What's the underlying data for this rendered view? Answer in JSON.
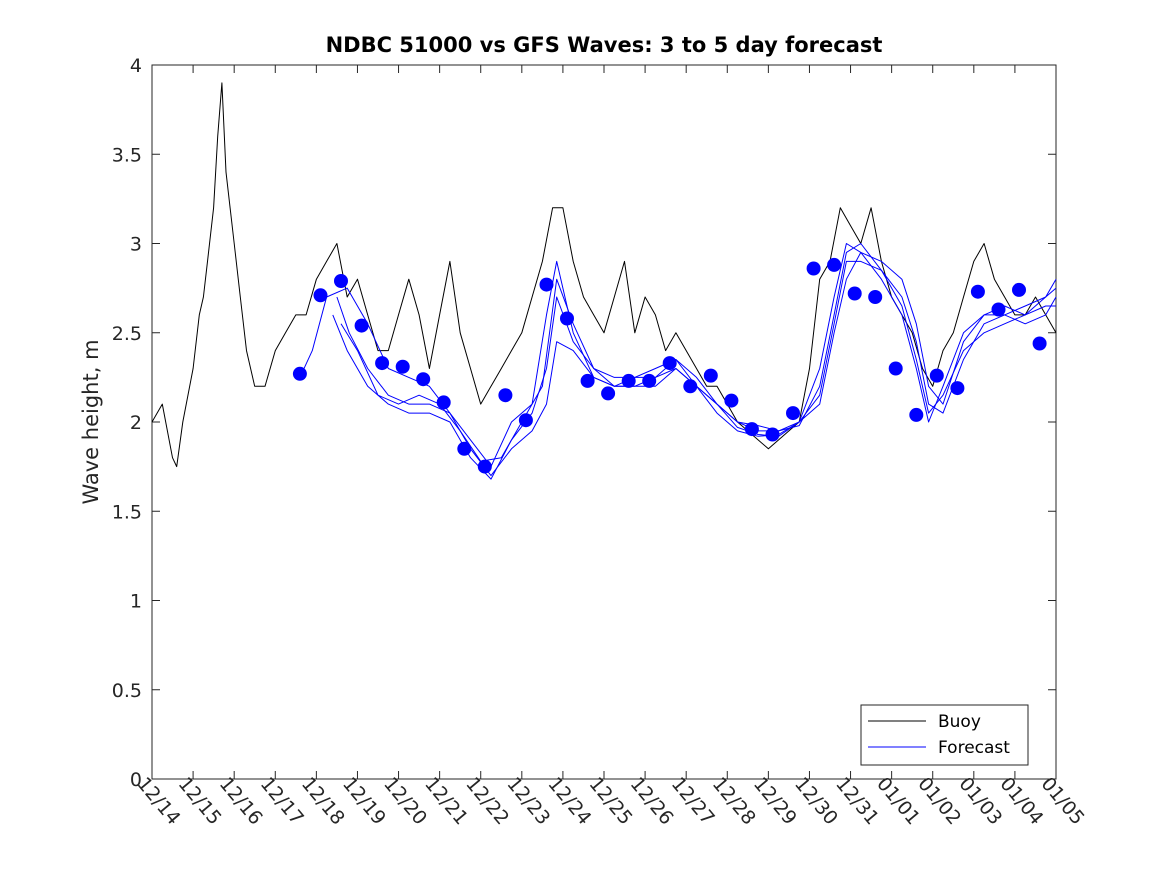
{
  "chart_data": {
    "type": "line",
    "title": "NDBC 51000 vs GFS Waves: 3 to 5 day forecast",
    "xlabel": "",
    "ylabel": "Wave height, m",
    "xlim": [
      0,
      22
    ],
    "ylim": [
      0,
      4
    ],
    "x_ticks": [
      {
        "x": 0,
        "label": "12/14"
      },
      {
        "x": 1,
        "label": "12/15"
      },
      {
        "x": 2,
        "label": "12/16"
      },
      {
        "x": 3,
        "label": "12/17"
      },
      {
        "x": 4,
        "label": "12/18"
      },
      {
        "x": 5,
        "label": "12/19"
      },
      {
        "x": 6,
        "label": "12/20"
      },
      {
        "x": 7,
        "label": "12/21"
      },
      {
        "x": 8,
        "label": "12/22"
      },
      {
        "x": 9,
        "label": "12/23"
      },
      {
        "x": 10,
        "label": "12/24"
      },
      {
        "x": 11,
        "label": "12/25"
      },
      {
        "x": 12,
        "label": "12/26"
      },
      {
        "x": 13,
        "label": "12/27"
      },
      {
        "x": 14,
        "label": "12/28"
      },
      {
        "x": 15,
        "label": "12/29"
      },
      {
        "x": 16,
        "label": "12/30"
      },
      {
        "x": 17,
        "label": "12/31"
      },
      {
        "x": 18,
        "label": "01/01"
      },
      {
        "x": 19,
        "label": "01/02"
      },
      {
        "x": 20,
        "label": "01/03"
      },
      {
        "x": 21,
        "label": "01/04"
      },
      {
        "x": 22,
        "label": "01/05"
      }
    ],
    "y_ticks": [
      {
        "y": 0,
        "label": "0"
      },
      {
        "y": 0.5,
        "label": "0.5"
      },
      {
        "y": 1,
        "label": "1"
      },
      {
        "y": 1.5,
        "label": "1.5"
      },
      {
        "y": 2,
        "label": "2"
      },
      {
        "y": 2.5,
        "label": "2.5"
      },
      {
        "y": 3,
        "label": "3"
      },
      {
        "y": 3.5,
        "label": "3.5"
      },
      {
        "y": 4,
        "label": "4"
      }
    ],
    "legend": {
      "position": "bottom-right",
      "entries": [
        {
          "name": "Buoy",
          "color": "#000000"
        },
        {
          "name": "Forecast",
          "color": "#0000ff"
        }
      ]
    },
    "series": [
      {
        "name": "Buoy",
        "color": "#000000",
        "x": [
          0,
          0.25,
          0.5,
          0.6,
          0.75,
          1,
          1.15,
          1.25,
          1.35,
          1.5,
          1.6,
          1.7,
          1.8,
          1.9,
          2,
          2.15,
          2.3,
          2.5,
          2.75,
          3,
          3.25,
          3.5,
          3.75,
          4,
          4.25,
          4.5,
          4.75,
          5,
          5.25,
          5.5,
          5.75,
          6,
          6.25,
          6.5,
          6.75,
          7,
          7.25,
          7.5,
          7.75,
          8,
          8.25,
          8.5,
          8.75,
          9,
          9.25,
          9.5,
          9.75,
          10,
          10.25,
          10.5,
          10.75,
          11,
          11.25,
          11.5,
          11.75,
          12,
          12.25,
          12.5,
          12.75,
          13,
          13.25,
          13.5,
          13.75,
          14,
          14.25,
          14.5,
          14.75,
          15,
          15.25,
          15.5,
          15.75,
          16,
          16.25,
          16.5,
          16.75,
          17,
          17.25,
          17.5,
          17.75,
          18,
          18.25,
          18.5,
          18.75,
          19,
          19.25,
          19.5,
          19.75,
          20,
          20.25,
          20.5,
          20.75,
          21,
          21.25,
          21.5,
          21.75,
          22
        ],
        "values": [
          2.0,
          2.1,
          1.8,
          1.75,
          2.0,
          2.3,
          2.6,
          2.7,
          2.9,
          3.2,
          3.6,
          3.9,
          3.4,
          3.2,
          3.0,
          2.7,
          2.4,
          2.2,
          2.2,
          2.4,
          2.5,
          2.6,
          2.6,
          2.8,
          2.9,
          3.0,
          2.7,
          2.8,
          2.6,
          2.4,
          2.4,
          2.6,
          2.8,
          2.6,
          2.3,
          2.6,
          2.9,
          2.5,
          2.3,
          2.1,
          2.2,
          2.3,
          2.4,
          2.5,
          2.7,
          2.9,
          3.2,
          3.2,
          2.9,
          2.7,
          2.6,
          2.5,
          2.7,
          2.9,
          2.5,
          2.7,
          2.6,
          2.4,
          2.5,
          2.4,
          2.3,
          2.2,
          2.2,
          2.1,
          2.0,
          1.95,
          1.9,
          1.85,
          1.9,
          1.95,
          2.0,
          2.3,
          2.8,
          2.9,
          3.2,
          3.1,
          3.0,
          3.2,
          2.9,
          2.7,
          2.6,
          2.5,
          2.3,
          2.2,
          2.4,
          2.5,
          2.7,
          2.9,
          3.0,
          2.8,
          2.7,
          2.6,
          2.6,
          2.7,
          2.6,
          2.5
        ]
      },
      {
        "name": "Forecast",
        "color": "#0000ff",
        "x": [
          3.6,
          3.9,
          4.25,
          4.75,
          5.25,
          5.75,
          6.25,
          6.75,
          7.25,
          7.75,
          8.25,
          8.75,
          9.25,
          9.6,
          9.85,
          10.25,
          10.75,
          11.25,
          11.75,
          12.25,
          12.75,
          13.25,
          13.75,
          14.25,
          14.75,
          15.25,
          15.75,
          16.25,
          16.6,
          16.9,
          17.25,
          17.75,
          18.25,
          18.6,
          18.9,
          19.25,
          19.75,
          20.25,
          20.75,
          21.25,
          21.75,
          22
        ],
        "values": [
          2.25,
          2.4,
          2.7,
          2.75,
          2.55,
          2.3,
          2.25,
          2.2,
          2.05,
          1.9,
          1.75,
          2.0,
          2.1,
          2.6,
          2.9,
          2.5,
          2.25,
          2.2,
          2.2,
          2.25,
          2.3,
          2.2,
          2.1,
          2.0,
          1.98,
          1.95,
          2.0,
          2.1,
          2.5,
          2.8,
          2.95,
          2.9,
          2.8,
          2.55,
          2.2,
          2.1,
          2.45,
          2.6,
          2.65,
          2.6,
          2.7,
          2.8
        ]
      },
      {
        "name": "Forecast",
        "color": "#0000ff",
        "x": [
          4.4,
          4.75,
          5.25,
          5.75,
          6.25,
          6.75,
          7.25,
          7.75,
          8.25,
          8.75,
          9.25,
          9.6,
          9.85,
          10.25,
          10.75,
          11.25,
          11.75,
          12.25,
          12.75,
          13.25,
          13.75,
          14.25,
          14.75,
          15.25,
          15.75,
          16.25,
          16.6,
          16.9,
          17.25,
          17.75,
          18.25,
          18.6,
          18.9,
          19.25,
          19.75,
          20.25,
          20.75,
          21.25,
          21.75,
          22
        ],
        "values": [
          2.6,
          2.4,
          2.2,
          2.1,
          2.05,
          2.05,
          2.0,
          1.8,
          1.68,
          1.9,
          2.05,
          2.3,
          2.7,
          2.45,
          2.3,
          2.2,
          2.2,
          2.2,
          2.3,
          2.2,
          2.05,
          1.95,
          1.92,
          1.93,
          2.0,
          2.15,
          2.55,
          2.9,
          2.9,
          2.85,
          2.7,
          2.45,
          2.1,
          2.05,
          2.35,
          2.55,
          2.6,
          2.55,
          2.6,
          2.7
        ]
      },
      {
        "name": "Forecast",
        "color": "#0000ff",
        "x": [
          4.5,
          4.8,
          5.25,
          5.75,
          6.25,
          6.75,
          7.25,
          7.75,
          8.25,
          8.75,
          9.25,
          9.6,
          9.85,
          10.25,
          10.75,
          11.25,
          11.75,
          12.25,
          12.75,
          13.25,
          13.75,
          14.25,
          14.75,
          15.25,
          15.75,
          16.25,
          16.6,
          16.9,
          17.25,
          17.75,
          18.25,
          18.6,
          18.9,
          19.25,
          19.75,
          20.25,
          20.75,
          21.25,
          21.75,
          22
        ],
        "values": [
          2.7,
          2.5,
          2.3,
          2.15,
          2.1,
          2.1,
          2.05,
          1.85,
          1.7,
          1.85,
          1.95,
          2.1,
          2.45,
          2.4,
          2.25,
          2.2,
          2.25,
          2.25,
          2.35,
          2.25,
          2.1,
          2.0,
          1.95,
          1.95,
          1.98,
          2.2,
          2.6,
          2.95,
          3.0,
          2.85,
          2.65,
          2.35,
          2.05,
          2.15,
          2.4,
          2.5,
          2.55,
          2.6,
          2.65,
          2.65
        ]
      },
      {
        "name": "Forecast",
        "color": "#0000ff",
        "x": [
          4.6,
          5.0,
          5.5,
          6.0,
          6.5,
          7.0,
          7.5,
          8.0,
          8.5,
          9.0,
          9.5,
          9.85,
          10.25,
          10.75,
          11.25,
          11.75,
          12.25,
          12.75,
          13.25,
          13.75,
          14.25,
          14.75,
          15.25,
          15.75,
          16.25,
          16.6,
          16.9,
          17.25,
          17.75,
          18.25,
          18.6,
          18.9,
          19.25,
          19.75,
          20.25,
          20.75,
          21.25,
          21.75,
          22
        ],
        "values": [
          2.55,
          2.4,
          2.15,
          2.1,
          2.15,
          2.1,
          1.95,
          1.78,
          1.8,
          2.0,
          2.2,
          2.8,
          2.55,
          2.3,
          2.25,
          2.25,
          2.3,
          2.35,
          2.2,
          2.1,
          1.97,
          1.93,
          1.92,
          2.0,
          2.3,
          2.7,
          3.0,
          2.95,
          2.8,
          2.6,
          2.3,
          2.0,
          2.2,
          2.5,
          2.6,
          2.6,
          2.65,
          2.7,
          2.75
        ]
      }
    ],
    "markers": {
      "name": "Forecast points",
      "color": "#0000ff",
      "x": [
        3.6,
        4.1,
        4.6,
        5.1,
        5.6,
        6.1,
        6.6,
        7.1,
        7.6,
        8.1,
        8.6,
        9.1,
        9.6,
        10.1,
        10.6,
        11.1,
        11.6,
        12.1,
        12.6,
        13.1,
        13.6,
        14.1,
        14.6,
        15.1,
        15.6,
        16.1,
        16.6,
        17.1,
        17.6,
        18.1,
        18.6,
        19.1,
        19.6,
        20.1,
        20.6,
        21.1,
        21.6
      ],
      "values": [
        2.27,
        2.71,
        2.79,
        2.54,
        2.33,
        2.31,
        2.24,
        2.11,
        1.85,
        1.75,
        2.15,
        2.01,
        2.77,
        2.58,
        2.23,
        2.16,
        2.23,
        2.23,
        2.33,
        2.2,
        2.26,
        2.12,
        1.96,
        1.93,
        2.05,
        2.86,
        2.88,
        2.72,
        2.7,
        2.3,
        2.04,
        2.26,
        2.19,
        2.73,
        2.63,
        2.74,
        2.44
      ]
    }
  }
}
